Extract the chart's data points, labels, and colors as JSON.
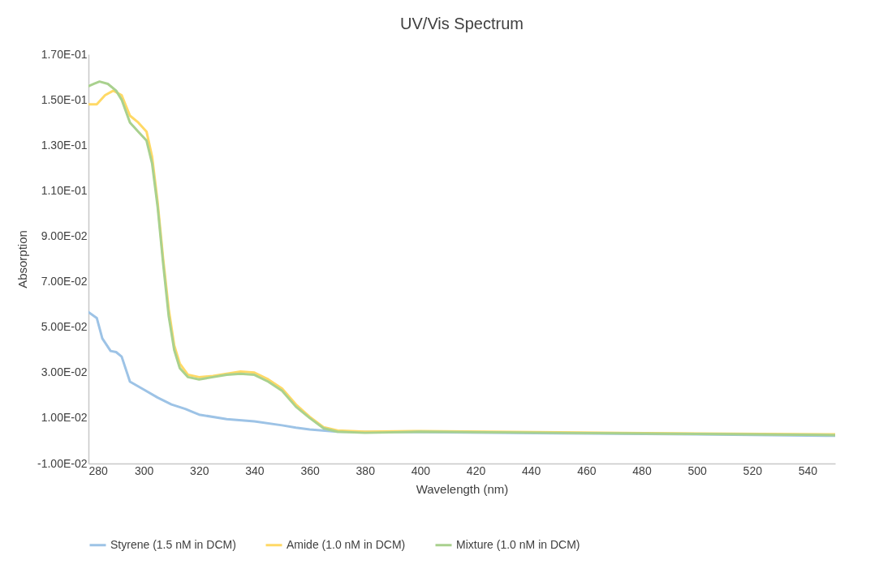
{
  "chart_data": {
    "type": "line",
    "title": "UV/Vis Spectrum",
    "xlabel": "Wavelength (nm)",
    "ylabel": "Absorption",
    "xlim": [
      280,
      550
    ],
    "xticks": [
      280,
      300,
      320,
      340,
      360,
      380,
      400,
      420,
      440,
      460,
      480,
      500,
      520,
      540
    ],
    "ylim": [
      -0.01,
      0.17
    ],
    "yticks": [
      {
        "value": -0.01,
        "label": "-1.00E-02"
      },
      {
        "value": 0.01,
        "label": "1.00E-02"
      },
      {
        "value": 0.03,
        "label": "3.00E-02"
      },
      {
        "value": 0.05,
        "label": "5.00E-02"
      },
      {
        "value": 0.07,
        "label": "7.00E-02"
      },
      {
        "value": 0.09,
        "label": "9.00E-02"
      },
      {
        "value": 0.11,
        "label": "1.10E-01"
      },
      {
        "value": 0.13,
        "label": "1.30E-01"
      },
      {
        "value": 0.15,
        "label": "1.50E-01"
      },
      {
        "value": 0.17,
        "label": "1.70E-01"
      }
    ],
    "grid": false,
    "legend": "bottom",
    "series": [
      {
        "name": "Styrene (1.5 nM in DCM)",
        "color": "#9dc3e6",
        "x": [
          280,
          283,
          285,
          288,
          290,
          292,
          295,
          300,
          305,
          310,
          315,
          320,
          330,
          340,
          350,
          355,
          360,
          370,
          400,
          450,
          500,
          550
        ],
        "values": [
          0.0566,
          0.054,
          0.045,
          0.0395,
          0.039,
          0.037,
          0.026,
          0.0225,
          0.019,
          0.016,
          0.014,
          0.0115,
          0.0095,
          0.0085,
          0.0068,
          0.0058,
          0.005,
          0.004,
          0.0038,
          0.0033,
          0.0028,
          0.0022
        ]
      },
      {
        "name": "Amide (1.0 nM in DCM)",
        "color": "#ffd966",
        "x": [
          280,
          283,
          286,
          289,
          292,
          295,
          298,
          301,
          303,
          305,
          307,
          309,
          311,
          313,
          316,
          320,
          325,
          330,
          335,
          340,
          345,
          350,
          355,
          360,
          365,
          370,
          380,
          400,
          450,
          500,
          550
        ],
        "values": [
          0.148,
          0.148,
          0.152,
          0.154,
          0.152,
          0.143,
          0.14,
          0.136,
          0.125,
          0.105,
          0.08,
          0.058,
          0.042,
          0.034,
          0.029,
          0.028,
          0.0285,
          0.0295,
          0.0305,
          0.03,
          0.027,
          0.023,
          0.016,
          0.0105,
          0.006,
          0.0045,
          0.004,
          0.0043,
          0.0037,
          0.0032,
          0.0028
        ]
      },
      {
        "name": "Mixture (1.0 nM in DCM)",
        "color": "#a9d18e",
        "x": [
          280,
          282,
          284,
          287,
          290,
          292,
          295,
          298,
          301,
          303,
          305,
          307,
          309,
          311,
          313,
          316,
          320,
          325,
          330,
          335,
          340,
          345,
          350,
          355,
          360,
          365,
          370,
          380,
          400,
          450,
          500,
          550
        ],
        "values": [
          0.156,
          0.157,
          0.158,
          0.157,
          0.154,
          0.15,
          0.14,
          0.136,
          0.132,
          0.122,
          0.103,
          0.078,
          0.055,
          0.04,
          0.032,
          0.028,
          0.027,
          0.028,
          0.029,
          0.0295,
          0.029,
          0.026,
          0.022,
          0.015,
          0.01,
          0.0055,
          0.004,
          0.0035,
          0.004,
          0.0035,
          0.003,
          0.0025
        ]
      }
    ]
  }
}
